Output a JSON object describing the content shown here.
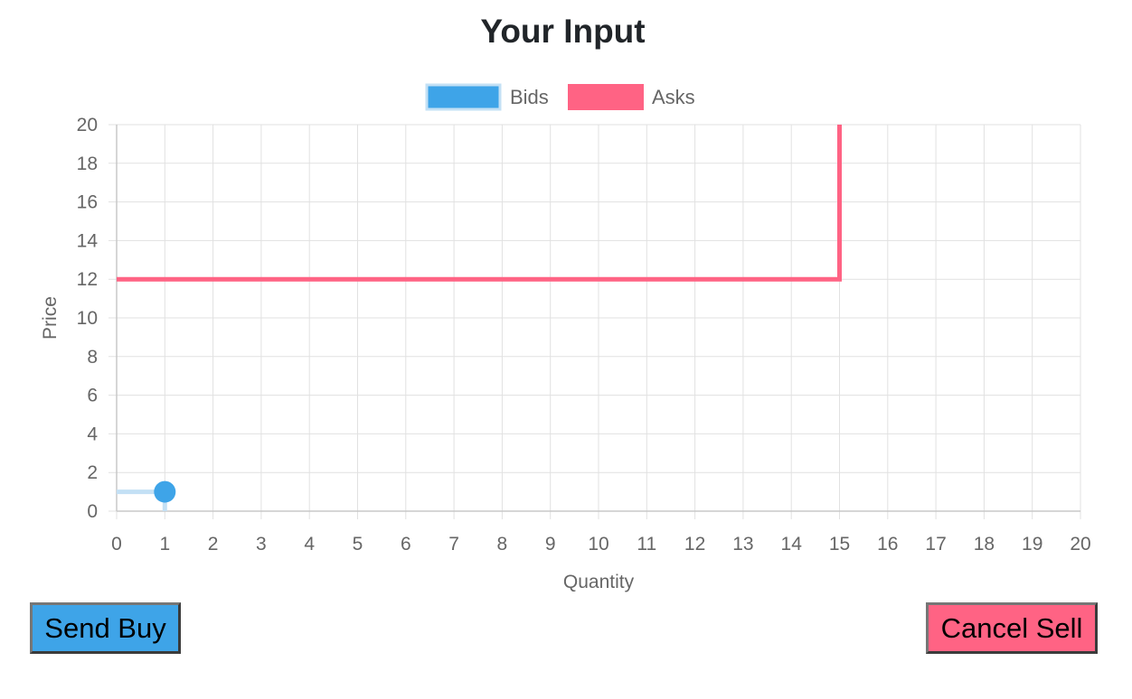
{
  "page": {
    "title": "Your Input"
  },
  "buttons": {
    "buy_label": "Send Buy",
    "sell_label": "Cancel Sell"
  },
  "colors": {
    "bids": "#3ea4e8",
    "bids_light": "#c3e0f5",
    "asks": "#ff6384",
    "grid": "#e1e1e1",
    "axis_text": "#666666"
  },
  "chart_data": {
    "type": "line",
    "xlabel": "Quantity",
    "ylabel": "Price",
    "xlim": [
      0,
      20
    ],
    "ylim": [
      0,
      20
    ],
    "x_ticks": [
      0,
      1,
      2,
      3,
      4,
      5,
      6,
      7,
      8,
      9,
      10,
      11,
      12,
      13,
      14,
      15,
      16,
      17,
      18,
      19,
      20
    ],
    "y_ticks": [
      0,
      2,
      4,
      6,
      8,
      10,
      12,
      14,
      16,
      18,
      20
    ],
    "grid": true,
    "legend": "top-center",
    "series": [
      {
        "name": "Bids",
        "stepped": true,
        "points": [
          {
            "x": 0,
            "y": 1
          },
          {
            "x": 1,
            "y": 1
          },
          {
            "x": 1,
            "y": 0
          }
        ],
        "marker": {
          "x": 1,
          "y": 1
        }
      },
      {
        "name": "Asks",
        "stepped": true,
        "points": [
          {
            "x": 0,
            "y": 12
          },
          {
            "x": 15,
            "y": 12
          },
          {
            "x": 15,
            "y": 20
          }
        ]
      }
    ]
  }
}
